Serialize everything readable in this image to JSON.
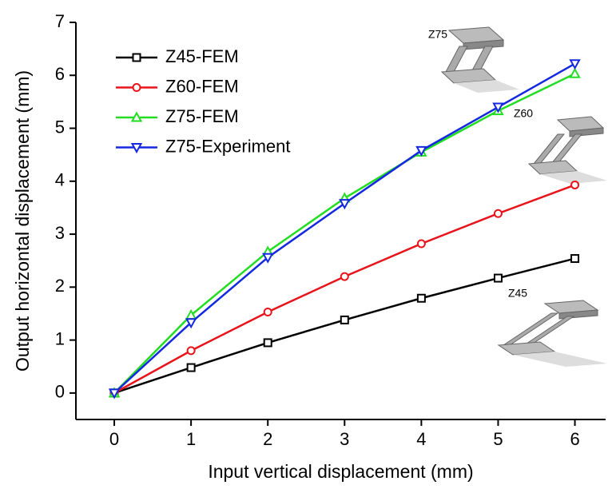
{
  "chart_data": {
    "type": "line",
    "x_label": "Input vertical displacement (mm)",
    "y_label": "Output horizontal displacement (mm)",
    "x": [
      0,
      1,
      2,
      3,
      4,
      5,
      6
    ],
    "series": [
      {
        "name": "Z45-FEM",
        "color": "#000000",
        "marker": "square",
        "values": [
          0,
          0.48,
          0.95,
          1.38,
          1.79,
          2.17,
          2.54
        ]
      },
      {
        "name": "Z60-FEM",
        "color": "#e8141b",
        "marker": "circle",
        "values": [
          0,
          0.8,
          1.53,
          2.2,
          2.82,
          3.39,
          3.93
        ]
      },
      {
        "name": "Z75-FEM",
        "color": "#22dd22",
        "marker": "triangle-up",
        "values": [
          0,
          1.47,
          2.67,
          3.68,
          4.55,
          5.33,
          6.03
        ]
      },
      {
        "name": "Z75-Experiment",
        "color": "#1428e0",
        "marker": "triangle-down",
        "values": [
          0,
          1.33,
          2.56,
          3.58,
          4.58,
          5.4,
          6.22
        ]
      }
    ],
    "xlim": [
      -0.5,
      6.4
    ],
    "xticks": [
      0,
      1,
      2,
      3,
      4,
      5,
      6
    ],
    "ylim": [
      -0.5,
      7
    ],
    "yticks": [
      0,
      1,
      2,
      3,
      4,
      5,
      6,
      7
    ],
    "legend": "upper left",
    "annotations": [
      "Z75",
      "Z60",
      "Z45"
    ]
  }
}
